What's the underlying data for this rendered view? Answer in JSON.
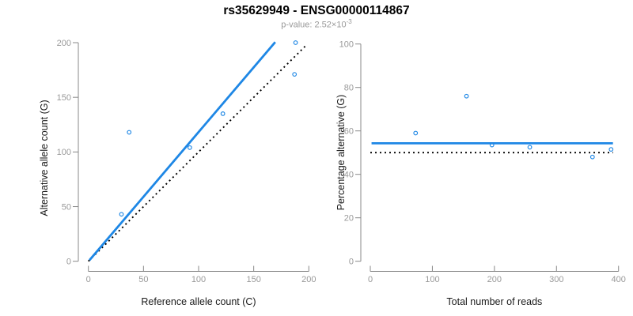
{
  "chart_data": {
    "title": "rs35629949 - ENSG00000114867",
    "subtitle": {
      "base": "p-value: 2.52×10",
      "exponent": "-3"
    },
    "panels": [
      {
        "type": "scatter",
        "name": "allele-count-scatter",
        "xlabel": "Reference allele count (C)",
        "ylabel": "Alternative allele count (G)",
        "xlim": [
          0,
          200
        ],
        "ylim": [
          0,
          200
        ],
        "xticks": [
          0,
          50,
          100,
          150,
          200
        ],
        "yticks": [
          0,
          50,
          100,
          150,
          200
        ],
        "grid": false,
        "legend": false,
        "marker": "open-circle",
        "points": [
          [
            30,
            43
          ],
          [
            37,
            118
          ],
          [
            92,
            104
          ],
          [
            122,
            135
          ],
          [
            187,
            171
          ],
          [
            188,
            200
          ]
        ],
        "lines": [
          {
            "name": "identity-line",
            "style": "dotted",
            "color": "#000000",
            "x1": 0,
            "y1": 0,
            "x2": 198,
            "y2": 198
          },
          {
            "name": "fit-line",
            "style": "solid",
            "color": "#1E87E5",
            "x1": 1,
            "y1": 1,
            "x2": 169.5,
            "y2": 200.5
          }
        ]
      },
      {
        "type": "scatter",
        "name": "percentage-scatter",
        "xlabel": "Total number of reads",
        "ylabel": "Percentage alternative (G)",
        "xlim": [
          0,
          400
        ],
        "ylim": [
          0,
          100
        ],
        "xticks": [
          0,
          100,
          200,
          300,
          400
        ],
        "yticks": [
          0,
          20,
          40,
          60,
          80,
          100
        ],
        "grid": false,
        "legend": false,
        "marker": "open-circle",
        "points": [
          [
            73,
            59
          ],
          [
            155,
            76
          ],
          [
            196,
            53.5
          ],
          [
            257,
            52.5
          ],
          [
            358,
            48
          ],
          [
            388,
            51.5
          ]
        ],
        "lines": [
          {
            "name": "expected-percentage-line",
            "style": "dotted",
            "color": "#000000",
            "x1": 0,
            "y1": 50,
            "x2": 391,
            "y2": 50
          },
          {
            "name": "mean-percentage-line",
            "style": "solid",
            "color": "#1E87E5",
            "x1": 2,
            "y1": 54.3,
            "x2": 391,
            "y2": 54.3
          }
        ]
      }
    ]
  },
  "colors": {
    "accent_blue": "#1E87E5",
    "identity_black": "#000000",
    "axis_line_gray": "#888888",
    "tick_label_gray": "#999999",
    "axis_title_dark": "#1a1a1a",
    "subtitle_gray": "#999999"
  }
}
